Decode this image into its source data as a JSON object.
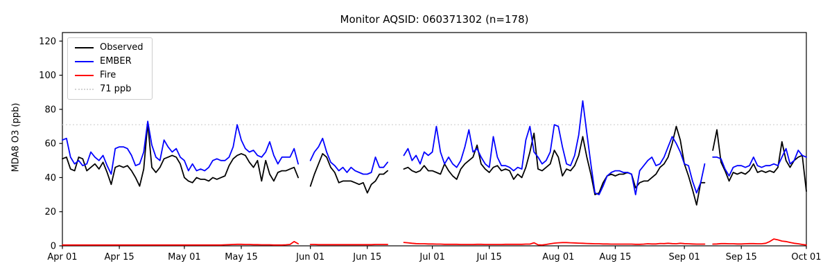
{
  "chart_data": {
    "type": "line",
    "title": "Monitor AQSID: 060371302 (n=178)",
    "ylabel": "MDA8 O3 (ppb)",
    "xlabel": "",
    "ylim": [
      0,
      125
    ],
    "y_ticks": [
      0,
      20,
      40,
      60,
      80,
      100,
      120
    ],
    "x_range_days": 183,
    "x_ticks": [
      {
        "day": 0,
        "label": "Apr 01"
      },
      {
        "day": 14,
        "label": "Apr 15"
      },
      {
        "day": 30,
        "label": "May 01"
      },
      {
        "day": 44,
        "label": "May 15"
      },
      {
        "day": 61,
        "label": "Jun 01"
      },
      {
        "day": 75,
        "label": "Jun 15"
      },
      {
        "day": 91,
        "label": "Jul 01"
      },
      {
        "day": 105,
        "label": "Jul 15"
      },
      {
        "day": 122,
        "label": "Aug 01"
      },
      {
        "day": 136,
        "label": "Aug 15"
      },
      {
        "day": 153,
        "label": "Sep 01"
      },
      {
        "day": 167,
        "label": "Sep 15"
      },
      {
        "day": 183,
        "label": "Oct 01"
      }
    ],
    "threshold": {
      "value": 71,
      "label": "71 ppb",
      "color": "#d3d3d3",
      "style": "dotted"
    },
    "legend_position": "upper-left",
    "grid": false,
    "series": [
      {
        "name": "Observed",
        "color": "#000000",
        "style": "solid",
        "values": [
          51,
          52,
          45,
          44,
          52,
          51,
          44,
          46,
          48,
          45,
          49,
          43,
          36,
          46,
          47,
          46,
          47,
          44,
          40,
          35,
          45,
          72,
          46,
          43,
          46,
          51,
          52,
          53,
          52,
          48,
          40,
          38,
          37,
          40,
          39,
          39,
          38,
          40,
          39,
          40,
          41,
          47,
          51,
          53,
          54,
          53,
          49,
          46,
          50,
          38,
          50,
          42,
          38,
          43,
          44,
          44,
          45,
          46,
          40,
          null,
          null,
          35,
          42,
          48,
          54,
          52,
          46,
          43,
          37,
          38,
          38,
          38,
          37,
          36,
          37,
          31,
          36,
          38,
          42,
          42,
          44,
          null,
          null,
          null,
          45,
          46,
          44,
          43,
          44,
          47,
          44,
          44,
          43,
          42,
          48,
          44,
          41,
          39,
          45,
          48,
          50,
          52,
          59,
          48,
          45,
          43,
          46,
          47,
          44,
          45,
          44,
          39,
          42,
          40,
          46,
          55,
          66,
          45,
          44,
          46,
          48,
          56,
          52,
          41,
          45,
          44,
          47,
          53,
          64,
          52,
          42,
          30,
          31,
          37,
          41,
          42,
          41,
          42,
          42,
          43,
          42,
          34,
          37,
          38,
          38,
          40,
          42,
          46,
          48,
          52,
          60,
          70,
          62,
          48,
          41,
          33,
          24,
          37,
          37,
          null,
          56,
          68,
          49,
          44,
          38,
          43,
          42,
          43,
          42,
          44,
          48,
          43,
          44,
          43,
          44,
          43,
          46,
          61,
          50,
          46,
          50,
          52,
          53,
          32
        ]
      },
      {
        "name": "EMBER",
        "color": "#0000ff",
        "style": "solid",
        "values": [
          62,
          63,
          52,
          48,
          50,
          47,
          48,
          55,
          52,
          50,
          53,
          47,
          42,
          57,
          58,
          58,
          57,
          53,
          47,
          48,
          55,
          73,
          59,
          52,
          50,
          62,
          58,
          55,
          57,
          52,
          50,
          44,
          48,
          44,
          45,
          44,
          46,
          50,
          51,
          50,
          50,
          52,
          58,
          71,
          62,
          57,
          55,
          56,
          53,
          52,
          55,
          61,
          53,
          48,
          52,
          52,
          52,
          57,
          48,
          null,
          null,
          50,
          55,
          58,
          63,
          55,
          49,
          47,
          44,
          46,
          43,
          46,
          44,
          43,
          42,
          42,
          43,
          52,
          46,
          46,
          49,
          null,
          null,
          null,
          53,
          57,
          50,
          53,
          48,
          55,
          53,
          55,
          70,
          55,
          48,
          52,
          48,
          46,
          50,
          58,
          68,
          55,
          57,
          52,
          48,
          46,
          64,
          52,
          47,
          47,
          46,
          44,
          46,
          45,
          62,
          70,
          55,
          52,
          48,
          50,
          55,
          71,
          70,
          58,
          48,
          47,
          53,
          65,
          85,
          66,
          48,
          31,
          30,
          35,
          41,
          43,
          44,
          44,
          43,
          43,
          42,
          30,
          44,
          47,
          50,
          52,
          47,
          48,
          52,
          58,
          64,
          60,
          55,
          48,
          47,
          38,
          31,
          37,
          48,
          null,
          52,
          52,
          51,
          45,
          41,
          46,
          47,
          47,
          46,
          47,
          52,
          47,
          46,
          47,
          47,
          48,
          47,
          52,
          57,
          48,
          50,
          56,
          53,
          52
        ]
      },
      {
        "name": "Fire",
        "color": "#ff0000",
        "style": "solid",
        "values": [
          0.5,
          0.5,
          0.5,
          0.5,
          0.5,
          0.5,
          0.5,
          0.5,
          0.5,
          0.5,
          0.5,
          0.5,
          0.5,
          0.5,
          0.5,
          0.5,
          0.5,
          0.5,
          0.5,
          0.5,
          0.5,
          0.5,
          0.5,
          0.5,
          0.5,
          0.5,
          0.5,
          0.5,
          0.5,
          0.5,
          0.5,
          0.5,
          0.5,
          0.5,
          0.5,
          0.5,
          0.5,
          0.5,
          0.5,
          0.5,
          0.6,
          0.7,
          0.8,
          0.9,
          0.9,
          0.8,
          0.8,
          0.7,
          0.7,
          0.6,
          0.6,
          0.6,
          0.5,
          0.5,
          0.5,
          0.6,
          0.8,
          2.5,
          1.2,
          null,
          null,
          0.8,
          0.8,
          0.7,
          0.7,
          0.7,
          0.7,
          0.7,
          0.7,
          0.7,
          0.7,
          0.7,
          0.7,
          0.7,
          0.7,
          0.7,
          0.7,
          0.8,
          0.8,
          0.8,
          0.8,
          null,
          null,
          null,
          2.0,
          1.8,
          1.5,
          1.3,
          1.2,
          1.2,
          1.1,
          1.1,
          1.0,
          1.0,
          0.9,
          0.9,
          0.9,
          0.9,
          0.8,
          0.8,
          0.8,
          0.8,
          0.9,
          0.9,
          0.8,
          0.8,
          0.8,
          0.8,
          0.8,
          0.9,
          0.9,
          0.9,
          0.9,
          0.9,
          1.0,
          1.0,
          1.8,
          0.6,
          0.5,
          0.8,
          1.2,
          1.6,
          1.8,
          1.9,
          1.9,
          1.8,
          1.7,
          1.6,
          1.5,
          1.4,
          1.3,
          1.2,
          1.2,
          1.1,
          1.1,
          1.0,
          1.0,
          1.0,
          1.0,
          1.0,
          1.0,
          0.9,
          0.9,
          1.0,
          1.2,
          1.1,
          1.1,
          1.4,
          1.3,
          1.5,
          1.3,
          1.2,
          1.5,
          1.3,
          1.2,
          1.1,
          1.0,
          1.0,
          1.0,
          null,
          1.0,
          1.1,
          1.3,
          1.3,
          1.2,
          1.2,
          1.1,
          1.1,
          1.2,
          1.3,
          1.3,
          1.2,
          1.2,
          1.5,
          2.5,
          4.0,
          3.5,
          2.8,
          2.5,
          2.0,
          1.5,
          1.2,
          0.8,
          0.5
        ]
      }
    ]
  }
}
